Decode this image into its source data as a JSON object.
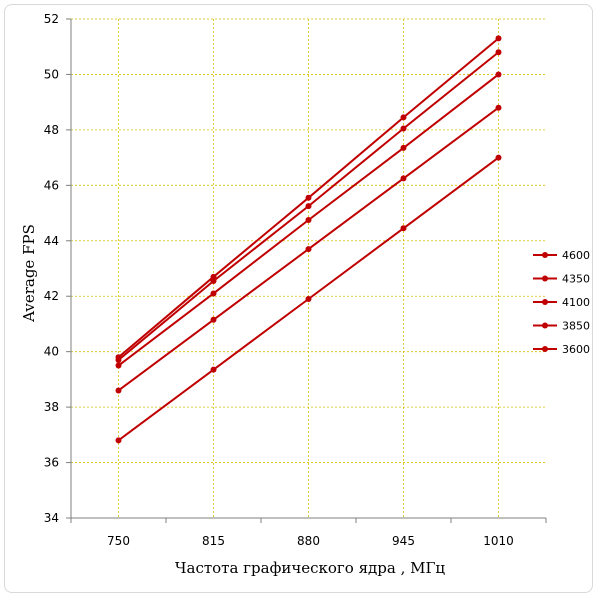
{
  "chart_data": {
    "type": "line",
    "title": "",
    "xlabel": "Частота графического ядра , МГц",
    "ylabel": "Average FPS",
    "categories": [
      "750",
      "815",
      "880",
      "945",
      "1010"
    ],
    "ylim": [
      34,
      52
    ],
    "yticks": [
      "34",
      "36",
      "38",
      "40",
      "42",
      "44",
      "46",
      "48",
      "50",
      "52"
    ],
    "grid": true,
    "legend_position": "right",
    "series": [
      {
        "name": "4600",
        "values": [
          39.8,
          42.7,
          45.55,
          48.45,
          51.3
        ]
      },
      {
        "name": "4350",
        "values": [
          39.7,
          42.55,
          45.25,
          48.05,
          50.8
        ]
      },
      {
        "name": "4100",
        "values": [
          39.5,
          42.1,
          44.75,
          47.35,
          50.0
        ]
      },
      {
        "name": "3850",
        "values": [
          38.6,
          41.15,
          43.7,
          46.25,
          48.8
        ]
      },
      {
        "name": "3600",
        "values": [
          36.8,
          39.35,
          41.9,
          44.45,
          47.0
        ]
      }
    ],
    "colors": {
      "line": "#c00000",
      "marker": "#c00000",
      "grid": "#d9c000",
      "axis": "#7f7f7f"
    }
  }
}
